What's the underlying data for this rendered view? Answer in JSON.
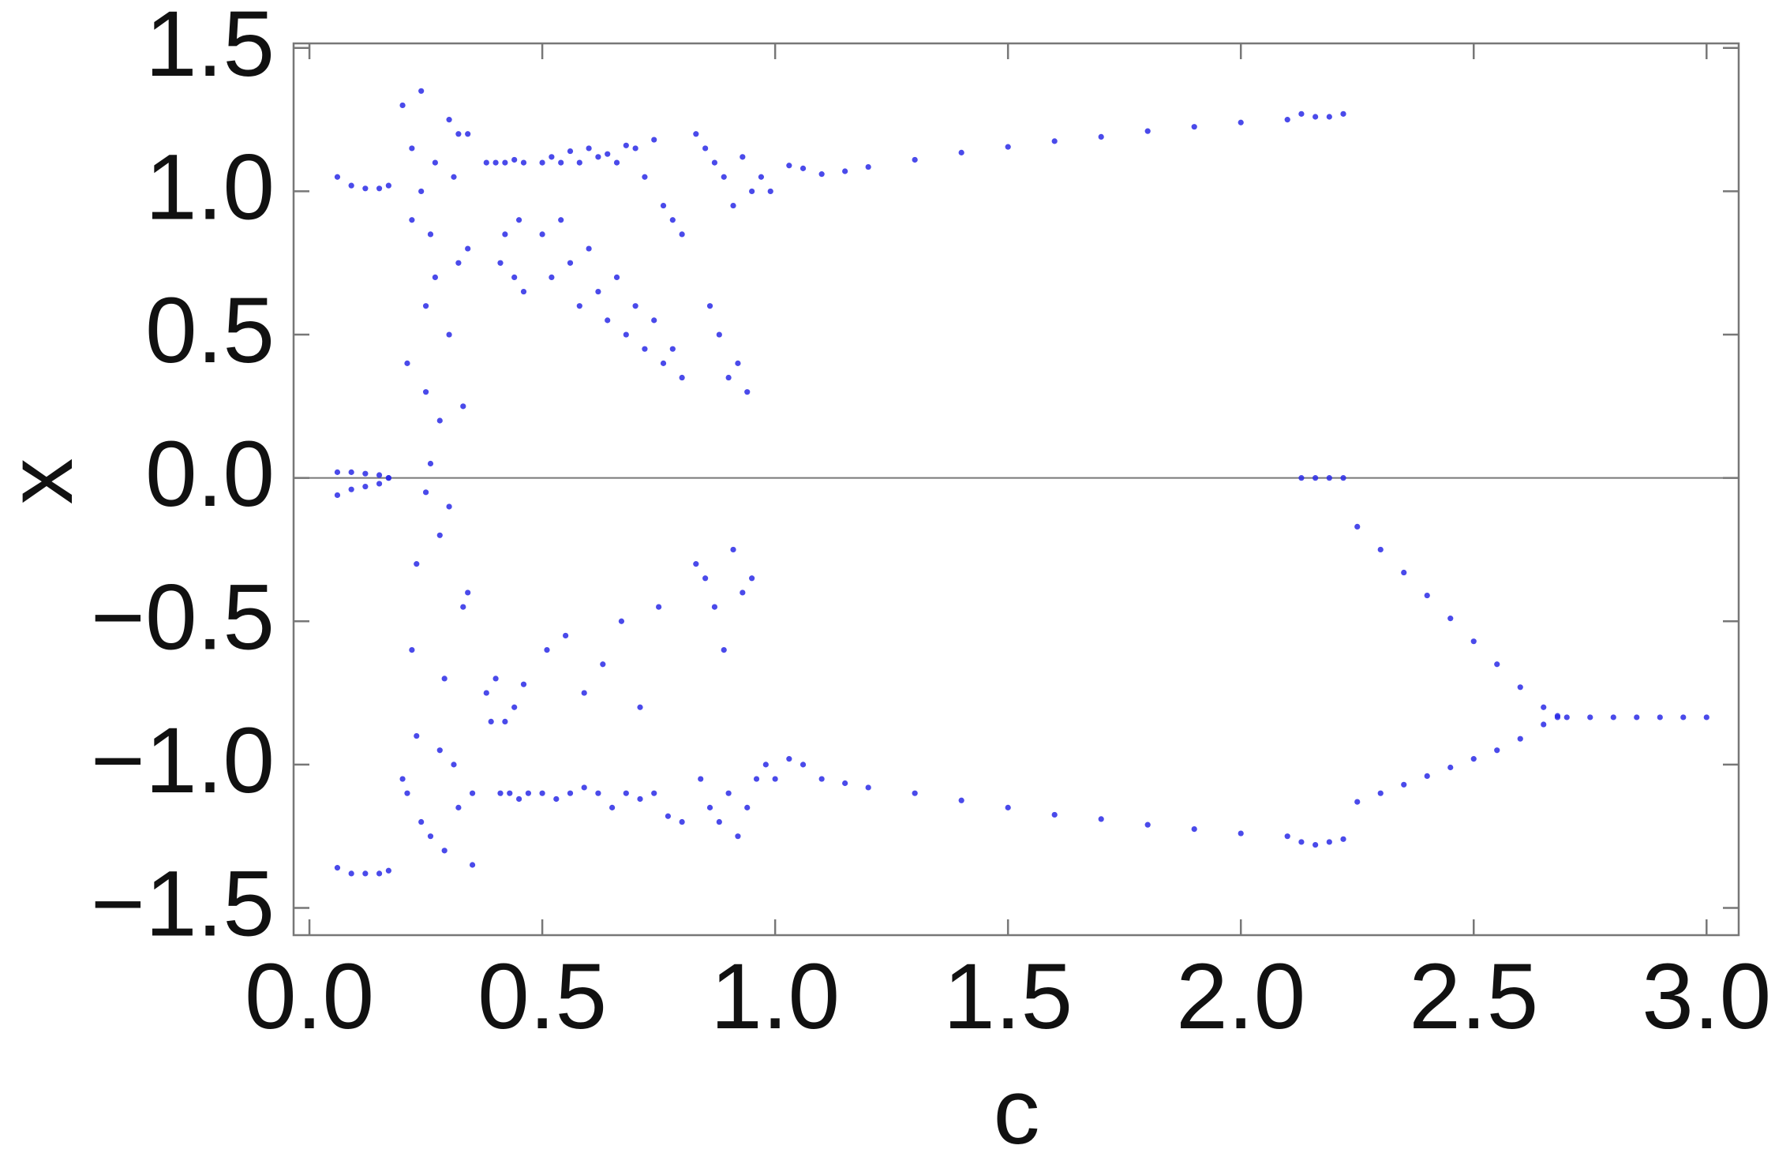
{
  "chart_data": {
    "type": "scatter",
    "xlabel": "c",
    "ylabel": "x",
    "color": "#2a2ae6",
    "xlim": [
      -0.034,
      3.069
    ],
    "ylim": [
      -1.595,
      1.516
    ],
    "xticks": [
      {
        "value": 0,
        "label": "0.0"
      },
      {
        "value": 0.5,
        "label": "0.5"
      },
      {
        "value": 1,
        "label": "1.0"
      },
      {
        "value": 1.5,
        "label": "1.5"
      },
      {
        "value": 2,
        "label": "2.0"
      },
      {
        "value": 2.5,
        "label": "2.5"
      },
      {
        "value": 3,
        "label": "3.0"
      }
    ],
    "yticks": [
      {
        "value": -1.5,
        "label": "−1.5"
      },
      {
        "value": -1,
        "label": "−1.0"
      },
      {
        "value": -0.5,
        "label": "−0.5"
      },
      {
        "value": 0,
        "label": "0.0"
      },
      {
        "value": 0.5,
        "label": "0.5"
      },
      {
        "value": 1,
        "label": "1.0"
      },
      {
        "value": 1.5,
        "label": "1.5"
      }
    ],
    "x": [
      0.06,
      0.09,
      0.12,
      0.15,
      0.17,
      0.06,
      0.09,
      0.12,
      0.15,
      0.17,
      0.06,
      0.09,
      0.12,
      0.15,
      0.17,
      0.06,
      0.09,
      0.12,
      0.15,
      0.17,
      0.2,
      0.21,
      0.22,
      0.23,
      0.24,
      0.25,
      0.26,
      0.27,
      0.28,
      0.29,
      0.3,
      0.31,
      0.32,
      0.33,
      0.34,
      0.35,
      0.21,
      0.23,
      0.25,
      0.27,
      0.29,
      0.31,
      0.33,
      0.35,
      0.22,
      0.24,
      0.26,
      0.28,
      0.3,
      0.32,
      0.34,
      0.2,
      0.22,
      0.24,
      0.26,
      0.28,
      0.3,
      0.32,
      0.34,
      0.25,
      0.38,
      0.4,
      0.42,
      0.44,
      0.46,
      0.38,
      0.4,
      0.42,
      0.44,
      0.46,
      0.39,
      0.41,
      0.43,
      0.45,
      0.47,
      0.42,
      0.44,
      0.46,
      0.41,
      0.45,
      0.5,
      0.52,
      0.54,
      0.56,
      0.58,
      0.6,
      0.62,
      0.64,
      0.66,
      0.68,
      0.7,
      0.72,
      0.74,
      0.76,
      0.78,
      0.8,
      0.5,
      0.52,
      0.54,
      0.56,
      0.58,
      0.6,
      0.62,
      0.64,
      0.66,
      0.68,
      0.7,
      0.72,
      0.74,
      0.76,
      0.78,
      0.8,
      0.5,
      0.53,
      0.56,
      0.59,
      0.62,
      0.65,
      0.68,
      0.71,
      0.74,
      0.77,
      0.8,
      0.51,
      0.55,
      0.59,
      0.63,
      0.67,
      0.71,
      0.75,
      0.83,
      0.85,
      0.87,
      0.89,
      0.91,
      0.93,
      0.95,
      0.97,
      0.99,
      0.86,
      0.88,
      0.9,
      0.92,
      0.94,
      0.83,
      0.85,
      0.87,
      0.89,
      0.91,
      0.93,
      0.95,
      0.84,
      0.86,
      0.88,
      0.9,
      0.92,
      0.94,
      0.96,
      0.98,
      1.0,
      1.03,
      1.06,
      1.1,
      1.15,
      1.2,
      1.3,
      1.4,
      1.5,
      1.6,
      1.7,
      1.8,
      1.9,
      2.0,
      2.1,
      1.03,
      1.06,
      1.1,
      1.15,
      1.2,
      1.3,
      1.4,
      1.5,
      1.6,
      1.7,
      1.8,
      1.9,
      2.0,
      2.1,
      2.13,
      2.16,
      2.19,
      2.22,
      2.13,
      2.16,
      2.19,
      2.22,
      2.13,
      2.16,
      2.19,
      2.22,
      2.25,
      2.3,
      2.35,
      2.4,
      2.45,
      2.5,
      2.55,
      2.6,
      2.65,
      2.68,
      2.25,
      2.3,
      2.35,
      2.4,
      2.45,
      2.5,
      2.55,
      2.6,
      2.65,
      2.68,
      2.7,
      2.75,
      2.8,
      2.85,
      2.9,
      2.95,
      3.0
    ],
    "values": [
      1.05,
      1.02,
      1.01,
      1.01,
      1.02,
      0.02,
      0.02,
      0.015,
      0.01,
      0.0,
      -0.06,
      -0.04,
      -0.03,
      -0.02,
      0.0,
      -1.36,
      -1.38,
      -1.38,
      -1.38,
      -1.37,
      1.3,
      -1.1,
      0.9,
      -0.3,
      1.35,
      0.6,
      -1.25,
      1.1,
      0.2,
      -0.7,
      1.25,
      -1.0,
      0.75,
      -0.45,
      1.2,
      -1.35,
      0.4,
      -0.9,
      -0.05,
      0.7,
      -1.3,
      1.05,
      0.25,
      -1.1,
      -0.6,
      1.0,
      0.05,
      -0.2,
      0.5,
      -1.15,
      0.8,
      -1.05,
      1.15,
      -1.2,
      0.85,
      -0.95,
      -0.1,
      1.2,
      -0.4,
      0.3,
      1.1,
      1.1,
      1.1,
      1.11,
      1.1,
      -0.75,
      -0.7,
      -0.85,
      -0.8,
      -0.72,
      -0.85,
      -1.1,
      -1.1,
      -1.12,
      -1.1,
      0.85,
      0.7,
      0.65,
      0.75,
      0.9,
      1.1,
      1.12,
      1.1,
      1.14,
      1.1,
      1.15,
      1.12,
      1.13,
      1.1,
      1.16,
      1.15,
      1.05,
      1.18,
      0.95,
      0.9,
      0.85,
      0.85,
      0.7,
      0.9,
      0.75,
      0.6,
      0.8,
      0.65,
      0.55,
      0.7,
      0.5,
      0.6,
      0.45,
      0.55,
      0.4,
      0.45,
      0.35,
      -1.1,
      -1.12,
      -1.1,
      -1.08,
      -1.1,
      -1.15,
      -1.1,
      -1.12,
      -1.1,
      -1.18,
      -1.2,
      -0.6,
      -0.55,
      -0.75,
      -0.65,
      -0.5,
      -0.8,
      -0.45,
      1.2,
      1.15,
      1.1,
      1.05,
      0.95,
      1.12,
      1.0,
      1.05,
      1.0,
      0.6,
      0.5,
      0.35,
      0.4,
      0.3,
      -0.3,
      -0.35,
      -0.45,
      -0.6,
      -0.25,
      -0.4,
      -0.35,
      -1.05,
      -1.15,
      -1.2,
      -1.1,
      -1.25,
      -1.15,
      -1.05,
      -1.0,
      -1.05,
      1.09,
      1.08,
      1.06,
      1.07,
      1.085,
      1.11,
      1.135,
      1.155,
      1.175,
      1.19,
      1.21,
      1.225,
      1.24,
      1.25,
      -0.98,
      -1.0,
      -1.05,
      -1.065,
      -1.08,
      -1.1,
      -1.125,
      -1.15,
      -1.175,
      -1.19,
      -1.21,
      -1.225,
      -1.24,
      -1.25,
      1.27,
      1.26,
      1.26,
      1.27,
      0.0,
      0.0,
      0.0,
      0.0,
      -1.27,
      -1.28,
      -1.27,
      -1.26,
      -0.17,
      -0.25,
      -0.33,
      -0.41,
      -0.49,
      -0.57,
      -0.65,
      -0.73,
      -0.8,
      -0.83,
      -1.13,
      -1.1,
      -1.07,
      -1.04,
      -1.01,
      -0.98,
      -0.95,
      -0.91,
      -0.86,
      -0.835,
      -0.835,
      -0.835,
      -0.835,
      -0.835,
      -0.835,
      -0.835,
      -0.835
    ]
  }
}
